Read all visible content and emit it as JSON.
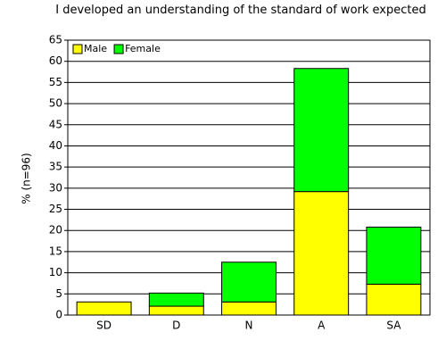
{
  "chart_data": {
    "type": "stacked_bar",
    "title": "I developed an understanding of the standard of work expected",
    "y_label": "% (n=96)",
    "categories": [
      "SD",
      "D",
      "N",
      "A",
      "SA"
    ],
    "series": [
      {
        "name": "Male",
        "color": "#ffff00",
        "values": [
          3.1,
          2.1,
          3.1,
          29.2,
          7.3
        ]
      },
      {
        "name": "Female",
        "color": "#00ff00",
        "values": [
          0,
          3.1,
          9.4,
          29.1,
          13.5
        ]
      }
    ],
    "ylim": [
      0,
      65
    ],
    "yticks": [
      0,
      5,
      10,
      15,
      20,
      25,
      30,
      35,
      40,
      45,
      50,
      55,
      60,
      65
    ],
    "grid": true,
    "legend": "top-left"
  }
}
